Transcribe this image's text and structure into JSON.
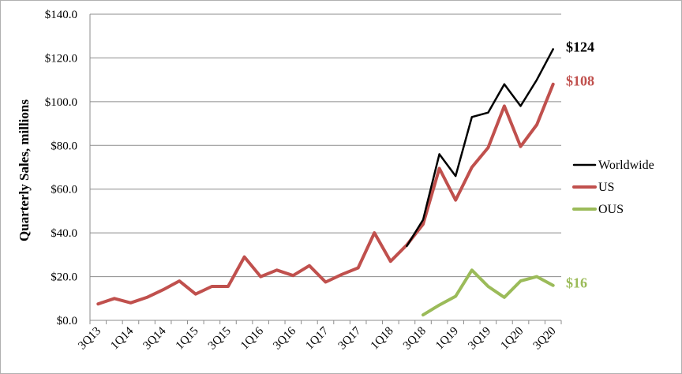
{
  "chart_data": {
    "type": "line",
    "ylabel": "Quarterly Sales, millions",
    "xlabel": "",
    "ylim": [
      0,
      140
    ],
    "y_ticks": [
      "$0.0",
      "$20.0",
      "$40.0",
      "$60.0",
      "$80.0",
      "$100.0",
      "$120.0",
      "$140.0"
    ],
    "y_tick_values": [
      0,
      20,
      40,
      60,
      80,
      100,
      120,
      140
    ],
    "grid": "horizontal",
    "legend_placement": "right",
    "x_ticks": [
      "3Q13",
      "1Q14",
      "3Q14",
      "1Q15",
      "3Q15",
      "1Q16",
      "3Q16",
      "1Q17",
      "3Q17",
      "1Q18",
      "3Q18",
      "1Q19",
      "3Q19",
      "1Q20",
      "3Q20"
    ],
    "categories": [
      "3Q13",
      "4Q13",
      "1Q14",
      "2Q14",
      "3Q14",
      "4Q14",
      "1Q15",
      "2Q15",
      "3Q15",
      "4Q15",
      "1Q16",
      "2Q16",
      "3Q16",
      "4Q16",
      "1Q17",
      "2Q17",
      "3Q17",
      "4Q17",
      "1Q18",
      "2Q18",
      "3Q18",
      "4Q18",
      "1Q19",
      "2Q19",
      "3Q19",
      "4Q19",
      "1Q20",
      "2Q20",
      "3Q20"
    ],
    "series": [
      {
        "name": "Worldwide",
        "color": "#000000",
        "values": [
          null,
          null,
          null,
          null,
          null,
          null,
          null,
          null,
          null,
          null,
          null,
          null,
          null,
          null,
          null,
          null,
          null,
          null,
          null,
          34,
          46,
          76,
          66,
          93,
          95,
          108,
          98,
          110,
          124
        ]
      },
      {
        "name": "US",
        "color": "#c0504d",
        "values": [
          7.5,
          10,
          8,
          10.5,
          14,
          18,
          12,
          15.5,
          15.5,
          29,
          20,
          23,
          20.5,
          25,
          17.5,
          21,
          24,
          40,
          27,
          34.5,
          44,
          69.5,
          55,
          70,
          79,
          98,
          79.5,
          89.5,
          108
        ]
      },
      {
        "name": "OUS",
        "color": "#9bbb59",
        "values": [
          null,
          null,
          null,
          null,
          null,
          null,
          null,
          null,
          null,
          null,
          null,
          null,
          null,
          null,
          null,
          null,
          null,
          null,
          null,
          null,
          2.5,
          7,
          11,
          23,
          15.5,
          10.5,
          18,
          20,
          16
        ]
      }
    ],
    "end_labels": [
      {
        "series": "Worldwide",
        "text": "$124",
        "color": "#000000"
      },
      {
        "series": "US",
        "text": "$108",
        "color": "#c0504d"
      },
      {
        "series": "OUS",
        "text": "$16",
        "color": "#9bbb59"
      }
    ]
  }
}
